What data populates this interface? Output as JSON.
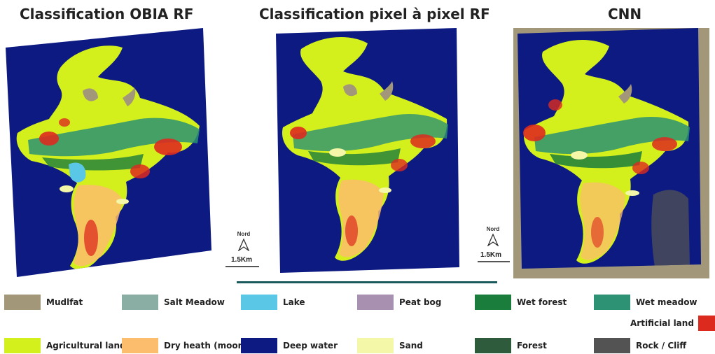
{
  "titles": {
    "obia": "Classification OBIA RF",
    "pixel": "Classification pixel à pixel RF",
    "cnn": "CNN"
  },
  "north_label": "Nord",
  "scale_label": "1.5Km",
  "legend": [
    {
      "label": "Mudlfat",
      "color": "#a3977a"
    },
    {
      "label": "Salt Meadow",
      "color": "#8aaea3"
    },
    {
      "label": "Lake",
      "color": "#5bc7e6"
    },
    {
      "label": "Peat bog",
      "color": "#a890b0"
    },
    {
      "label": "Wet forest",
      "color": "#1a7d3c"
    },
    {
      "label": "Wet meadow",
      "color": "#2c9273"
    },
    {
      "label": "Artificial land",
      "color": "#dd2a1f"
    },
    {
      "label": "Agricultural land",
      "color": "#d4f01c"
    },
    {
      "label": "Dry heath (moor)",
      "color": "#fcbd6c"
    },
    {
      "label": "Deep water",
      "color": "#0c1a82"
    },
    {
      "label": "Sand",
      "color": "#f5f7a8"
    },
    {
      "label": "Forest",
      "color": "#2f5b3d"
    },
    {
      "label": "Rock / Cliff",
      "color": "#535353"
    }
  ],
  "colors": {
    "frame_cnn": "#a3977a",
    "divider": "#1b5a5c"
  }
}
